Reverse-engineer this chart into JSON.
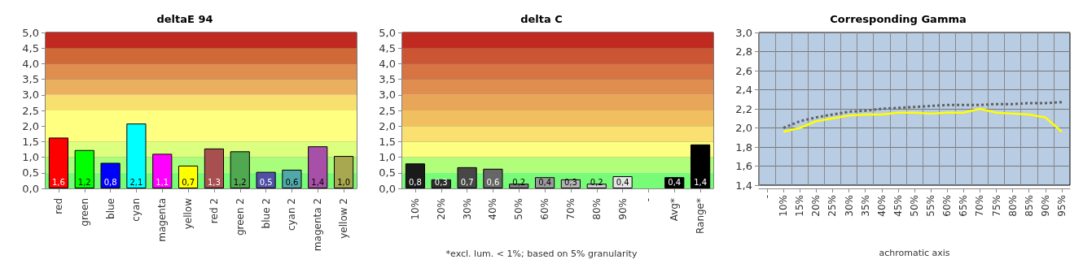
{
  "chart_data": [
    {
      "type": "bar",
      "title": "deltaE 94",
      "categories": [
        "red",
        "green",
        "blue",
        "cyan",
        "magenta",
        "yellow",
        "red 2",
        "green 2",
        "blue 2",
        "cyan 2",
        "magenta 2",
        "yellow 2"
      ],
      "values": [
        1.63,
        1.23,
        0.82,
        2.08,
        1.11,
        0.73,
        1.28,
        1.19,
        0.53,
        0.6,
        1.35,
        1.04
      ],
      "value_labels": [
        "1,6",
        "1,2",
        "0,8",
        "2,1",
        "1,1",
        "0,7",
        "1,3",
        "1,2",
        "0,5",
        "0,6",
        "1,4",
        "1,0"
      ],
      "colors": [
        "#ff0000",
        "#00ff00",
        "#0000ff",
        "#00ffff",
        "#ff00ff",
        "#ffff00",
        "#a85050",
        "#50a850",
        "#5050a8",
        "#50a8a8",
        "#a850a8",
        "#a8a850"
      ],
      "ylim": [
        0,
        5
      ],
      "yticks": [
        {
          "value": 0,
          "label": "0,0"
        },
        {
          "value": 0.5,
          "label": "0,5"
        },
        {
          "value": 1,
          "label": "1,0"
        },
        {
          "value": 1.5,
          "label": "1,5"
        },
        {
          "value": 2,
          "label": "2,0"
        },
        {
          "value": 2.5,
          "label": "2,5"
        },
        {
          "value": 3,
          "label": "3,0"
        },
        {
          "value": 3.5,
          "label": "3,5"
        },
        {
          "value": 4,
          "label": "4,0"
        },
        {
          "value": 4.5,
          "label": "4,5"
        },
        {
          "value": 5,
          "label": "5,0"
        }
      ],
      "grid": "y",
      "bands": [
        {
          "axis": "y",
          "from": 0,
          "to": 0.5,
          "color": "#78fc78"
        },
        {
          "axis": "y",
          "from": 0.5,
          "to": 1,
          "color": "#a8fe7a"
        },
        {
          "axis": "y",
          "from": 1,
          "to": 1.5,
          "color": "#dcff80"
        },
        {
          "axis": "y",
          "from": 1.5,
          "to": 2.5,
          "color": "#ffff80"
        },
        {
          "axis": "y",
          "from": 2.5,
          "to": 3,
          "color": "#f8e070"
        },
        {
          "axis": "y",
          "from": 3,
          "to": 3.5,
          "color": "#eab060"
        },
        {
          "axis": "y",
          "from": 3.5,
          "to": 4,
          "color": "#e08e50"
        },
        {
          "axis": "y",
          "from": 4,
          "to": 4.5,
          "color": "#d06838"
        },
        {
          "axis": "y",
          "from": 4.5,
          "to": 5,
          "color": "#c02a20"
        }
      ]
    },
    {
      "type": "bar",
      "title": "delta C",
      "categories": [
        "10%",
        "20%",
        "30%",
        "40%",
        "50%",
        "60%",
        "70%",
        "80%",
        "90%",
        "-",
        "Avg*",
        "Range*"
      ],
      "values": [
        0.8,
        0.29,
        0.68,
        0.63,
        0.15,
        0.36,
        0.29,
        0.15,
        0.39,
        null,
        0.36,
        1.41
      ],
      "value_labels": [
        "0,8",
        "0,3",
        "0,7",
        "0,6",
        "0,2",
        "0,4",
        "0,3",
        "0,2",
        "0,4",
        null,
        "0,4",
        "1,4"
      ],
      "colors": [
        "#1a1a1a",
        "#2e2e2e",
        "#474747",
        "#666666",
        "#808080",
        "#999999",
        "#b3b3b3",
        "#cccccc",
        "#e6e6e6",
        "#000000",
        "#000000",
        "#000000"
      ],
      "annotations": [
        "*excl. lum. < 1%; based on 5% granularity"
      ],
      "ylim": [
        0,
        5
      ],
      "yticks": [
        {
          "value": 0,
          "label": "0,0"
        },
        {
          "value": 0.5,
          "label": "0,5"
        },
        {
          "value": 1,
          "label": "1,0"
        },
        {
          "value": 1.5,
          "label": "1,5"
        },
        {
          "value": 2,
          "label": "2,0"
        },
        {
          "value": 2.5,
          "label": "2,5"
        },
        {
          "value": 3,
          "label": "3,0"
        },
        {
          "value": 3.5,
          "label": "3,5"
        },
        {
          "value": 4,
          "label": "4,0"
        },
        {
          "value": 4.5,
          "label": "4,5"
        },
        {
          "value": 5,
          "label": "5,0"
        }
      ],
      "grid": "y",
      "bands": [
        {
          "axis": "y",
          "from": 0,
          "to": 0.5,
          "color": "#78fc78"
        },
        {
          "axis": "y",
          "from": 0.5,
          "to": 1,
          "color": "#b0fe7a"
        },
        {
          "axis": "y",
          "from": 1,
          "to": 1.5,
          "color": "#fcff80"
        },
        {
          "axis": "y",
          "from": 1.5,
          "to": 2,
          "color": "#fae070"
        },
        {
          "axis": "y",
          "from": 2,
          "to": 2.5,
          "color": "#f0c060"
        },
        {
          "axis": "y",
          "from": 2.5,
          "to": 3,
          "color": "#e8a658"
        },
        {
          "axis": "y",
          "from": 3,
          "to": 3.5,
          "color": "#e08e50"
        },
        {
          "axis": "y",
          "from": 3.5,
          "to": 4,
          "color": "#d87444"
        },
        {
          "axis": "y",
          "from": 4,
          "to": 4.5,
          "color": "#cc5634"
        },
        {
          "axis": "y",
          "from": 4.5,
          "to": 5,
          "color": "#c02a20"
        }
      ]
    },
    {
      "type": "line",
      "title": "Corresponding Gamma",
      "xlabel": "achromatic axis",
      "categories": [
        "-",
        "10%",
        "15%",
        "20%",
        "25%",
        "30%",
        "35%",
        "40%",
        "45%",
        "50%",
        "55%",
        "60%",
        "65%",
        "70%",
        "75%",
        "80%",
        "85%",
        "90%",
        "95%"
      ],
      "series": [
        {
          "color": "#606060",
          "line_style": "dotted",
          "values": [
            null,
            2.0,
            2.07,
            2.11,
            2.14,
            2.17,
            2.18,
            2.2,
            2.21,
            2.22,
            2.23,
            2.24,
            2.24,
            2.24,
            2.25,
            2.25,
            2.26,
            2.26,
            2.27
          ]
        },
        {
          "color": "#ffff00",
          "line_style": "solid",
          "values": [
            null,
            1.96,
            2.0,
            2.07,
            2.1,
            2.13,
            2.14,
            2.14,
            2.16,
            2.16,
            2.15,
            2.16,
            2.16,
            2.2,
            2.16,
            2.15,
            2.14,
            2.11,
            1.96
          ]
        }
      ],
      "ylim": [
        1.4,
        3.0
      ],
      "yticks": [
        {
          "value": 1.4,
          "label": "1,4"
        },
        {
          "value": 1.6,
          "label": "1,6"
        },
        {
          "value": 1.8,
          "label": "1,8"
        },
        {
          "value": 2.0,
          "label": "2,0"
        },
        {
          "value": 2.2,
          "label": "2,2"
        },
        {
          "value": 2.4,
          "label": "2,4"
        },
        {
          "value": 2.6,
          "label": "2,6"
        },
        {
          "value": 2.8,
          "label": "2,8"
        },
        {
          "value": 3.0,
          "label": "3,0"
        }
      ],
      "grid": true,
      "marker": "none"
    }
  ]
}
